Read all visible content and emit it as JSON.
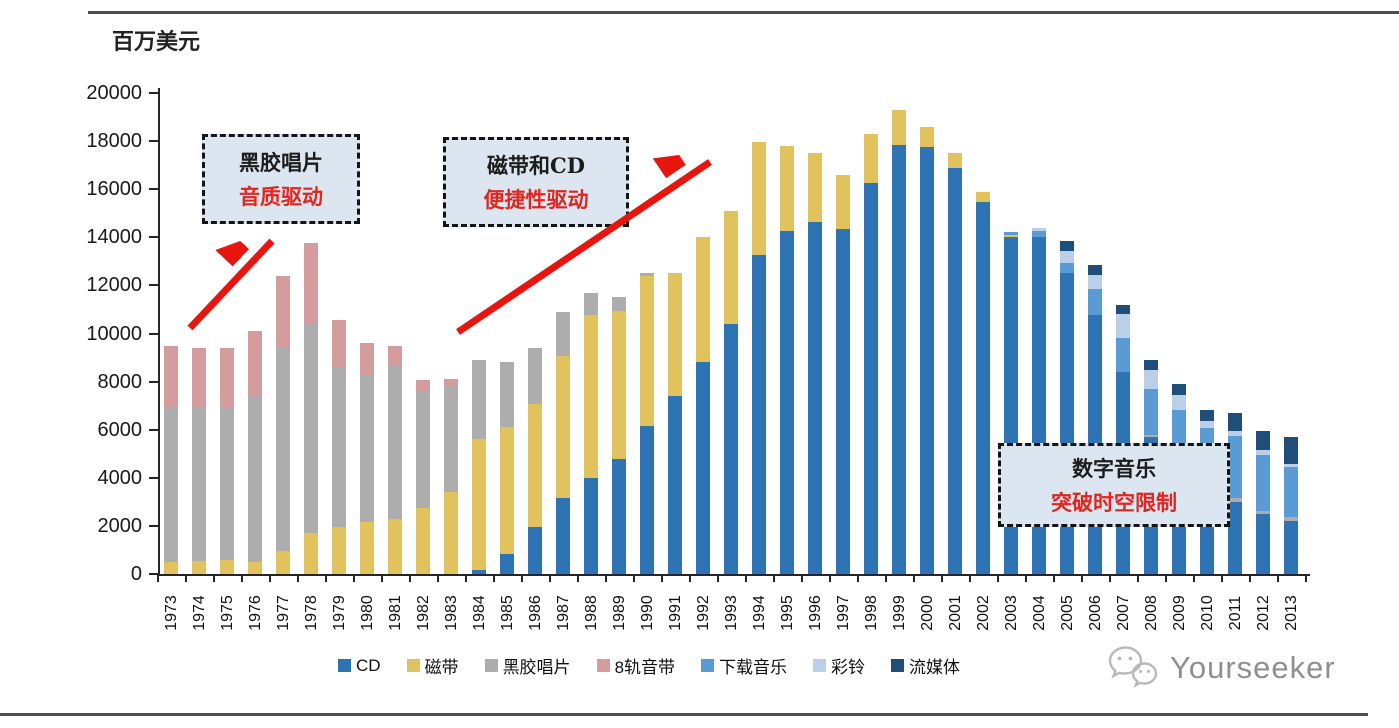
{
  "unit_label": "百万美元",
  "watermark": {
    "text": "Yourseeker",
    "icon": "wechat-logo"
  },
  "annotations": [
    {
      "id": "vinyl",
      "line1": "黑胶唱片",
      "line2": "音质驱动"
    },
    {
      "id": "cd",
      "line1": "磁带和CD",
      "line2": "便捷性驱动"
    },
    {
      "id": "digital",
      "line1": "数字音乐",
      "line2": "突破时空限制"
    }
  ],
  "chart_data": {
    "type": "bar",
    "stacked": true,
    "title": "百万美元",
    "ylabel": "百万美元",
    "xlabel": "",
    "ylim": [
      0,
      20000
    ],
    "ytick_step": 2000,
    "grid": false,
    "legend_position": "bottom",
    "x": [
      1973,
      1974,
      1975,
      1976,
      1977,
      1978,
      1979,
      1980,
      1981,
      1982,
      1983,
      1984,
      1985,
      1986,
      1987,
      1988,
      1989,
      1990,
      1991,
      1992,
      1993,
      1994,
      1995,
      1996,
      1997,
      1998,
      1999,
      2000,
      2001,
      2002,
      2003,
      2004,
      2005,
      2006,
      2007,
      2008,
      2009,
      2010,
      2011,
      2012,
      2013
    ],
    "series": [
      {
        "name": "CD",
        "color": "#2E74B5",
        "values": [
          0,
          0,
          0,
          0,
          0,
          0,
          0,
          0,
          0,
          0,
          0,
          150,
          850,
          1950,
          3150,
          4000,
          4800,
          6150,
          7400,
          8800,
          10400,
          13250,
          14250,
          14650,
          14350,
          16250,
          17850,
          17750,
          16900,
          15450,
          14000,
          14000,
          12500,
          10750,
          8400,
          5700,
          5000,
          4100,
          3000,
          2500,
          2200
        ]
      },
      {
        "name": "磁带",
        "color": "#E2C25C",
        "values": [
          500,
          550,
          600,
          500,
          950,
          1700,
          1950,
          2150,
          2270,
          2750,
          3400,
          5450,
          5250,
          5100,
          5900,
          6750,
          6150,
          6250,
          5100,
          5200,
          4700,
          4700,
          3550,
          2850,
          2250,
          2050,
          1450,
          850,
          600,
          450,
          100,
          0,
          0,
          0,
          0,
          0,
          0,
          0,
          0,
          0,
          0
        ]
      },
      {
        "name": "黑胶唱片",
        "color": "#ADADAD",
        "values": [
          6400,
          6350,
          6300,
          6950,
          8450,
          8700,
          6600,
          6100,
          6430,
          4800,
          4450,
          3300,
          2700,
          2350,
          1850,
          950,
          550,
          100,
          0,
          0,
          0,
          0,
          0,
          0,
          0,
          0,
          0,
          0,
          0,
          0,
          0,
          0,
          0,
          0,
          0,
          100,
          100,
          100,
          150,
          100,
          150
        ]
      },
      {
        "name": "8轨音带",
        "color": "#D49C9C",
        "values": [
          2600,
          2500,
          2500,
          2650,
          3000,
          3350,
          2000,
          1350,
          800,
          500,
          250,
          0,
          0,
          0,
          0,
          0,
          0,
          0,
          0,
          0,
          0,
          0,
          0,
          0,
          0,
          0,
          0,
          0,
          0,
          0,
          0,
          0,
          0,
          0,
          0,
          0,
          0,
          0,
          0,
          0,
          0
        ]
      },
      {
        "name": "下载音乐",
        "color": "#5B9BD5",
        "values": [
          0,
          0,
          0,
          0,
          0,
          0,
          0,
          0,
          0,
          0,
          0,
          0,
          0,
          0,
          0,
          0,
          0,
          0,
          0,
          0,
          0,
          0,
          0,
          0,
          0,
          0,
          0,
          0,
          0,
          0,
          100,
          250,
          450,
          1100,
          1400,
          1900,
          1700,
          1850,
          2600,
          2350,
          2100
        ]
      },
      {
        "name": "彩铃",
        "color": "#BCCFE8",
        "values": [
          0,
          0,
          0,
          0,
          0,
          0,
          0,
          0,
          0,
          0,
          0,
          0,
          0,
          0,
          0,
          0,
          0,
          0,
          0,
          0,
          0,
          0,
          0,
          0,
          0,
          0,
          0,
          0,
          0,
          0,
          0,
          150,
          500,
          600,
          1000,
          800,
          650,
          330,
          200,
          200,
          130
        ]
      },
      {
        "name": "流媒体",
        "color": "#1F4E79",
        "values": [
          0,
          0,
          0,
          0,
          0,
          0,
          0,
          0,
          0,
          0,
          0,
          0,
          0,
          0,
          0,
          0,
          0,
          0,
          0,
          0,
          0,
          0,
          0,
          0,
          0,
          0,
          0,
          0,
          0,
          0,
          0,
          0,
          400,
          400,
          400,
          400,
          450,
          420,
          750,
          800,
          1120
        ]
      }
    ]
  }
}
